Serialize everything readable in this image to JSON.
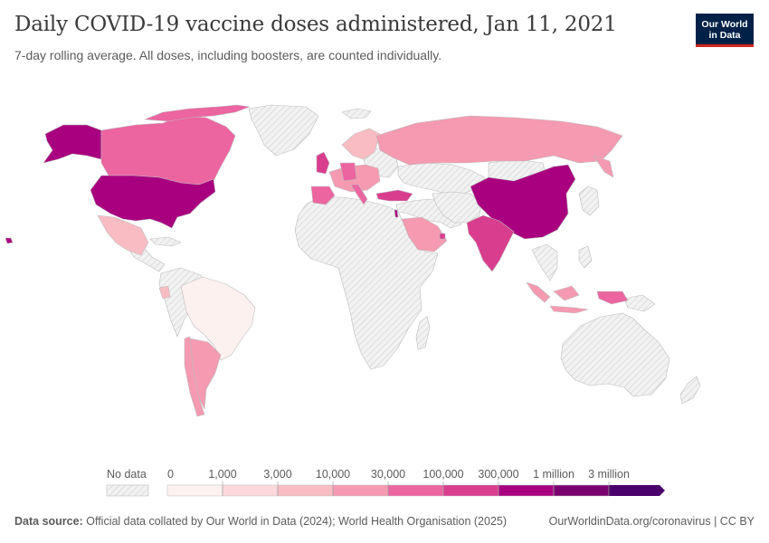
{
  "header": {
    "title": "Daily COVID-19 vaccine doses administered, Jan 11, 2021",
    "subtitle": "7-day rolling average. All doses, including boosters, are counted individually."
  },
  "logo": {
    "line1": "Our World",
    "line2": "in Data"
  },
  "legend": {
    "no_data_label": "No data",
    "ticks": [
      "0",
      "1,000",
      "3,000",
      "10,000",
      "30,000",
      "100,000",
      "300,000",
      "1 million",
      "3 million"
    ],
    "colors": [
      "#fdf1ef",
      "#fbd9db",
      "#f9bcc2",
      "#f59ab0",
      "#ec64a0",
      "#d93d8e",
      "#a8007f",
      "#7a0070",
      "#4a006a"
    ]
  },
  "map_data": {
    "metric": "Daily COVID-19 vaccine doses administered (7-day rolling average)",
    "date": "Jan 11, 2021",
    "regions": [
      {
        "name": "United States",
        "bin": "300,000–1 million",
        "color": "#a8007f"
      },
      {
        "name": "China",
        "bin": "300,000–1 million",
        "color": "#a8007f"
      },
      {
        "name": "Alaska",
        "bin": "300,000–1 million",
        "color": "#a8007f"
      },
      {
        "name": "India",
        "bin": "100,000–300,000",
        "color": "#d93d8e"
      },
      {
        "name": "United Kingdom",
        "bin": "100,000–300,000",
        "color": "#d93d8e"
      },
      {
        "name": "Turkey",
        "bin": "100,000–300,000",
        "color": "#d93d8e"
      },
      {
        "name": "Canada",
        "bin": "30,000–100,000",
        "color": "#ec64a0"
      },
      {
        "name": "Spain",
        "bin": "30,000–100,000",
        "color": "#ec64a0"
      },
      {
        "name": "Germany",
        "bin": "30,000–100,000",
        "color": "#ec64a0"
      },
      {
        "name": "Italy",
        "bin": "30,000–100,000",
        "color": "#ec64a0"
      },
      {
        "name": "Russia",
        "bin": "10,000–30,000",
        "color": "#f59ab0"
      },
      {
        "name": "Argentina",
        "bin": "10,000–30,000",
        "color": "#f59ab0"
      },
      {
        "name": "Indonesia",
        "bin": "10,000–30,000",
        "color": "#f59ab0"
      },
      {
        "name": "Saudi Arabia",
        "bin": "10,000–30,000",
        "color": "#f59ab0"
      },
      {
        "name": "Mexico",
        "bin": "3,000–10,000",
        "color": "#f9bcc2"
      },
      {
        "name": "Brazil",
        "bin": "0–1,000",
        "color": "#fdf1ef"
      }
    ]
  },
  "footer": {
    "source_label": "Data source:",
    "source_text": "Official data collated by Our World in Data (2024); World Health Organisation (2025)",
    "link": "OurWorldinData.org/coronavirus | CC BY"
  }
}
